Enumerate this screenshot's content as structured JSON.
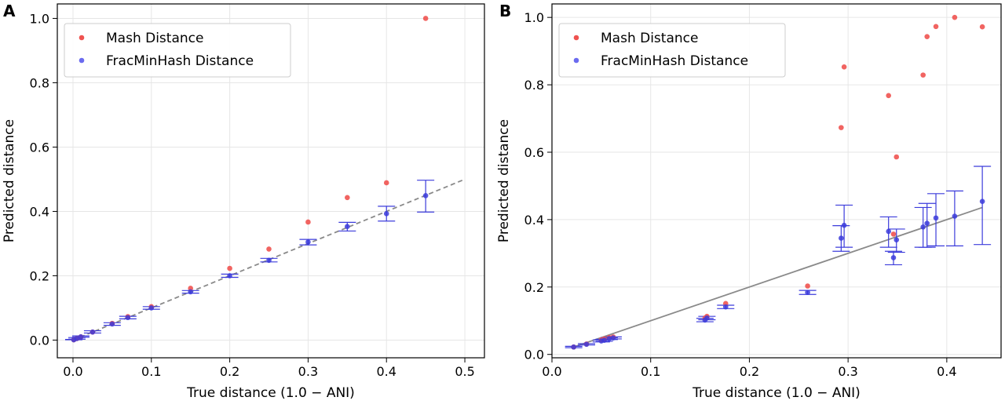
{
  "colors": {
    "mash": "#ef5350",
    "fmh": "#3b3bdb",
    "fmh_legend": "#6b6bef",
    "reference_line": "#8a8a8a",
    "grid": "#e6e6e6"
  },
  "chart_data": [
    {
      "panel_label": "A",
      "type": "scatter",
      "xlabel": "True distance (1.0 − ANI)",
      "ylabel": "Predicted distance",
      "xlim": [
        -0.02,
        0.525
      ],
      "ylim": [
        -0.055,
        1.045
      ],
      "xticks": [
        0.0,
        0.1,
        0.2,
        0.3,
        0.4,
        0.5
      ],
      "xtick_labels": [
        "0.0",
        "0.1",
        "0.2",
        "0.3",
        "0.4",
        "0.5"
      ],
      "yticks": [
        0.0,
        0.2,
        0.4,
        0.6,
        0.8,
        1.0
      ],
      "ytick_labels": [
        "0.0",
        "0.2",
        "0.4",
        "0.6",
        "0.8",
        "1.0"
      ],
      "grid": true,
      "legend_position": "top-left",
      "reference_line": {
        "style": "dashed",
        "from": [
          0.0,
          0.0
        ],
        "to": [
          0.5,
          0.5
        ]
      },
      "series": [
        {
          "name": "Mash Distance",
          "color": "#ef5350",
          "x": [
            0.001,
            0.005,
            0.01,
            0.025,
            0.05,
            0.07,
            0.1,
            0.15,
            0.2,
            0.25,
            0.3,
            0.35,
            0.4,
            0.45
          ],
          "y": [
            0.001,
            0.005,
            0.01,
            0.025,
            0.052,
            0.073,
            0.104,
            0.161,
            0.223,
            0.283,
            0.367,
            0.443,
            0.489,
            1.0
          ]
        },
        {
          "name": "FracMinHash Distance",
          "color": "#3b3bdb",
          "x": [
            0.001,
            0.005,
            0.01,
            0.025,
            0.05,
            0.07,
            0.1,
            0.15,
            0.2,
            0.25,
            0.3,
            0.35,
            0.4,
            0.45
          ],
          "y": [
            0.001,
            0.005,
            0.01,
            0.025,
            0.05,
            0.07,
            0.1,
            0.15,
            0.2,
            0.248,
            0.305,
            0.353,
            0.393,
            0.449
          ],
          "err_low": [
            0.001,
            0.003,
            0.009,
            0.022,
            0.046,
            0.066,
            0.096,
            0.146,
            0.195,
            0.243,
            0.296,
            0.339,
            0.37,
            0.398
          ],
          "err_high": [
            0.002,
            0.008,
            0.013,
            0.029,
            0.054,
            0.074,
            0.104,
            0.154,
            0.205,
            0.254,
            0.313,
            0.366,
            0.416,
            0.497
          ]
        }
      ]
    },
    {
      "panel_label": "B",
      "type": "scatter",
      "xlabel": "True distance (1.0 − ANI)",
      "ylabel": "Predicted distance",
      "xlim": [
        0.0,
        0.455
      ],
      "ylim": [
        -0.01,
        1.04
      ],
      "xticks": [
        0.0,
        0.1,
        0.2,
        0.3,
        0.4
      ],
      "xtick_labels": [
        "0.0",
        "0.1",
        "0.2",
        "0.3",
        "0.4"
      ],
      "yticks": [
        0.0,
        0.2,
        0.4,
        0.6,
        0.8,
        1.0
      ],
      "ytick_labels": [
        "0.0",
        "0.2",
        "0.4",
        "0.6",
        "0.8",
        "1.0"
      ],
      "grid": true,
      "legend_position": "top-left",
      "reference_line": {
        "style": "solid",
        "from": [
          0.022,
          0.022
        ],
        "to": [
          0.436,
          0.436
        ]
      },
      "series": [
        {
          "name": "Mash Distance",
          "color": "#ef5350",
          "x": [
            0.022,
            0.035,
            0.05,
            0.053,
            0.058,
            0.062,
            0.155,
            0.157,
            0.176,
            0.259,
            0.293,
            0.296,
            0.341,
            0.346,
            0.349,
            0.376,
            0.38,
            0.389,
            0.408,
            0.436
          ],
          "y": [
            0.022,
            0.031,
            0.043,
            0.046,
            0.05,
            0.052,
            0.108,
            0.113,
            0.151,
            0.203,
            0.673,
            0.853,
            0.768,
            0.357,
            0.586,
            0.829,
            0.943,
            0.973,
            1.0,
            0.972
          ]
        },
        {
          "name": "FracMinHash Distance",
          "color": "#3b3bdb",
          "x": [
            0.022,
            0.035,
            0.05,
            0.053,
            0.058,
            0.062,
            0.155,
            0.157,
            0.176,
            0.259,
            0.293,
            0.296,
            0.341,
            0.346,
            0.349,
            0.376,
            0.38,
            0.389,
            0.408,
            0.436
          ],
          "y": [
            0.022,
            0.03,
            0.04,
            0.042,
            0.047,
            0.049,
            0.102,
            0.108,
            0.141,
            0.184,
            0.345,
            0.383,
            0.365,
            0.287,
            0.34,
            0.378,
            0.389,
            0.405,
            0.41,
            0.454
          ],
          "err_low": [
            0.02,
            0.028,
            0.037,
            0.039,
            0.044,
            0.046,
            0.097,
            0.103,
            0.136,
            0.178,
            0.306,
            0.318,
            0.318,
            0.266,
            0.303,
            0.318,
            0.318,
            0.322,
            0.322,
            0.326
          ],
          "err_high": [
            0.024,
            0.032,
            0.043,
            0.045,
            0.05,
            0.052,
            0.107,
            0.113,
            0.146,
            0.19,
            0.382,
            0.443,
            0.408,
            0.306,
            0.372,
            0.436,
            0.448,
            0.477,
            0.485,
            0.558
          ]
        }
      ]
    }
  ]
}
